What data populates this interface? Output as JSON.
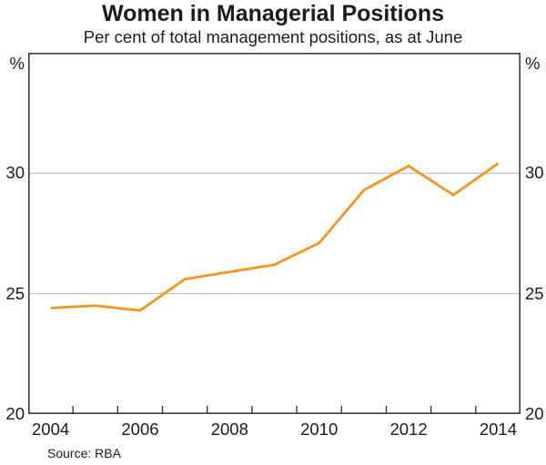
{
  "header": {
    "title": "Women in Managerial Positions",
    "subtitle": "Per cent of total management positions, as at June"
  },
  "footer": {
    "source": "Source: RBA"
  },
  "colors": {
    "line": "#F7941D",
    "grid": "#B5B5B5",
    "frame": "#3C3C3C",
    "text": "#1C1C1C",
    "background": "#FFFFFF"
  },
  "chart_data": {
    "type": "line",
    "title": "Women in Managerial Positions",
    "subtitle": "Per cent of total management positions, as at June",
    "source": "Source: RBA",
    "unit_label": "%",
    "x": [
      2004,
      2005,
      2006,
      2007,
      2008,
      2009,
      2010,
      2011,
      2012,
      2013,
      2014
    ],
    "series": [
      {
        "name": "Women in managerial positions",
        "values": [
          24.4,
          24.5,
          24.3,
          25.6,
          25.9,
          26.2,
          27.1,
          29.3,
          30.3,
          29.1,
          30.4
        ]
      }
    ],
    "xlabel": "",
    "ylabel": "%",
    "ylim": [
      20,
      35
    ],
    "yticks_labeled": [
      30,
      25,
      20
    ],
    "gridlines_y": [
      30,
      25
    ],
    "xticks_labeled": [
      2004,
      2006,
      2008,
      2010,
      2012,
      2014
    ],
    "grid": "horizontal-only",
    "legend_position": "none",
    "layout_notes": "dual y-axis labels left and right, x tick marks at year boundaries on bottom axis only, data points plotted at mid-year"
  }
}
